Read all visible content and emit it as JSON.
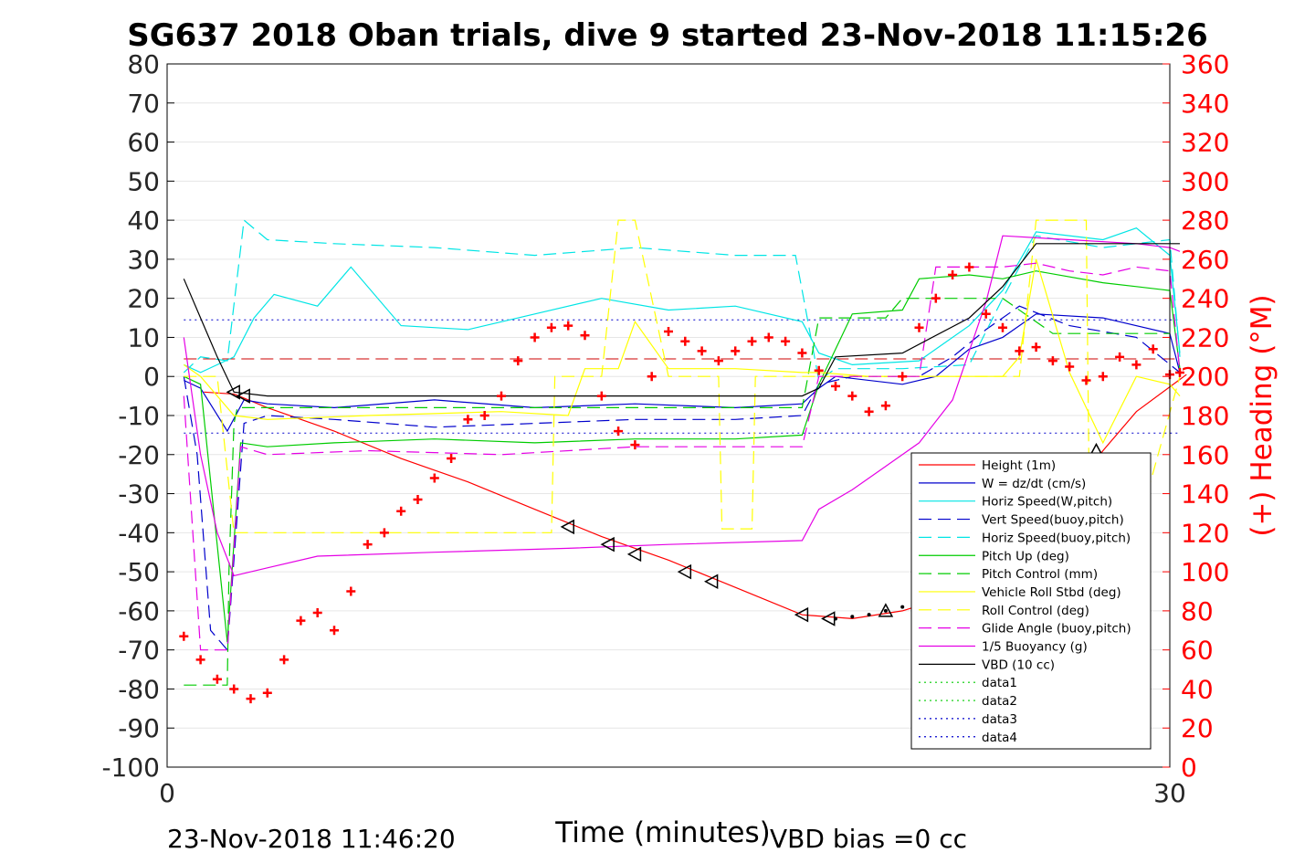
{
  "chart_data": {
    "type": "line",
    "title": "SG637 2018 Oban trials, dive 9 started 23-Nov-2018 11:15:26",
    "xlabel": "Time (minutes)",
    "ylabel_right": "(+) Heading (°M)",
    "xlim": [
      0,
      30
    ],
    "ylim_left": [
      -100,
      80
    ],
    "ylim_right": [
      0,
      360
    ],
    "x_ticks": [
      "0",
      "30"
    ],
    "y_ticks_left": [
      "80",
      "70",
      "60",
      "50",
      "40",
      "30",
      "20",
      "10",
      "0",
      "-10",
      "-20",
      "-30",
      "-40",
      "-50",
      "-60",
      "-70",
      "-80",
      "-90",
      "-100"
    ],
    "y_ticks_right": [
      "360",
      "340",
      "320",
      "300",
      "280",
      "260",
      "240",
      "220",
      "200",
      "180",
      "160",
      "140",
      "120",
      "100",
      "80",
      "60",
      "40",
      "20",
      "0"
    ],
    "footer_left": "23-Nov-2018 11:46:20",
    "footer_right": "VBD bias =0 cc",
    "legend_placement": "lower-right",
    "series": [
      {
        "name": "Height (1m)",
        "color": "#ff0000",
        "style": "solid",
        "x": [
          1.1,
          2.0,
          3.0,
          5.0,
          7.0,
          9.0,
          11.0,
          13.0,
          15.0,
          17.0,
          19.0,
          20.5,
          22.0,
          23.5,
          24.5,
          25.5,
          26.5,
          27.3,
          28.0,
          29.0,
          30.5
        ],
        "y": [
          -4,
          -4.5,
          -8,
          -14,
          -21,
          -27,
          -34,
          -41,
          -47,
          -54,
          -61,
          -62,
          -60,
          -56,
          -51,
          -44,
          -36,
          -27,
          -19,
          -9,
          0.5
        ]
      },
      {
        "name": "W = dz/dt (cm/s)",
        "color": "#0000cc",
        "style": "solid",
        "x": [
          0.5,
          1.0,
          1.8,
          2.3,
          3.0,
          5.0,
          8.0,
          11.0,
          14.0,
          17.0,
          19.0,
          19.5,
          20.0,
          22.0,
          23.0,
          24.0,
          25.0,
          26.0,
          28.0,
          30.0,
          30.3
        ],
        "y": [
          -1,
          -3,
          -14,
          -6,
          -7,
          -8,
          -6,
          -8,
          -7,
          -8,
          -7,
          -3,
          0,
          -2,
          0,
          7,
          10,
          16,
          15,
          11,
          1
        ]
      },
      {
        "name": "Horiz Speed(W,pitch)",
        "color": "#00e5e5",
        "style": "solid",
        "x": [
          0.5,
          1.0,
          2.0,
          2.6,
          3.2,
          4.5,
          5.5,
          7.0,
          9.0,
          11.0,
          13.0,
          15.0,
          17.0,
          19.0,
          19.5,
          20.5,
          22.5,
          24.0,
          25.0,
          26.0,
          28.0,
          29.0,
          30.0,
          30.3
        ],
        "y": [
          3,
          1,
          5,
          15,
          21,
          18,
          28,
          13,
          12,
          16,
          20,
          17,
          18,
          14,
          6,
          3,
          4,
          13,
          22,
          37,
          35,
          38,
          31,
          6
        ]
      },
      {
        "name": "Vert Speed(buoy,pitch)",
        "color": "#0000cc",
        "style": "dashed",
        "x": [
          0.5,
          0.9,
          1.3,
          1.8,
          2.3,
          3.0,
          5.0,
          8.0,
          11.0,
          14.0,
          17.0,
          19.0,
          19.5,
          20.5,
          22.5,
          23.5,
          24.5,
          25.5,
          27.0,
          29.0,
          30.3
        ],
        "y": [
          0,
          -20,
          -65,
          -70,
          -12,
          -10,
          -11,
          -13,
          -12,
          -11,
          -11,
          -10,
          -2,
          0,
          0,
          5,
          12,
          18,
          13,
          10,
          1
        ]
      },
      {
        "name": "Horiz Speed(buoy,pitch)",
        "color": "#00e5e5",
        "style": "dashed",
        "x": [
          0.5,
          1.0,
          1.8,
          2.3,
          3.0,
          5.0,
          8.0,
          11.0,
          14.0,
          17.0,
          18.8,
          19.0,
          19.5,
          20.0,
          22.0,
          24.0,
          25.0,
          26.0,
          28.0,
          30.0,
          30.3
        ],
        "y": [
          1,
          5,
          4,
          40,
          35,
          34,
          33,
          31,
          33,
          31,
          31,
          22,
          -1,
          2,
          2,
          3,
          20,
          36,
          33,
          35,
          5
        ]
      },
      {
        "name": "Pitch Up (deg)",
        "color": "#00cc00",
        "style": "solid",
        "x": [
          0.5,
          1.0,
          1.8,
          2.2,
          3.0,
          5.0,
          8.0,
          11.0,
          14.0,
          17.0,
          19.0,
          19.5,
          20.5,
          22.0,
          22.5,
          24.0,
          25.0,
          26.0,
          28.0,
          29.0,
          30.0,
          30.3
        ],
        "y": [
          0,
          -2,
          -68,
          -17,
          -18,
          -17,
          -16,
          -17,
          -16,
          -16,
          -15,
          -2,
          16,
          17,
          25,
          26,
          25,
          27,
          24,
          23,
          22,
          2
        ]
      },
      {
        "name": "Pitch Control (mm)",
        "color": "#00cc00",
        "style": "dashed",
        "x": [
          0.5,
          1.8,
          1.85,
          2.0,
          2.1,
          5.0,
          10.0,
          15.0,
          19.0,
          19.5,
          21.5,
          22.0,
          25.0,
          26.5,
          30.0
        ],
        "y": [
          -79,
          -79,
          -50,
          -12,
          -8,
          -8,
          -8,
          -8,
          -8,
          15,
          15,
          20,
          20,
          11,
          11
        ]
      },
      {
        "name": "Vehicle Roll Stbd (deg)",
        "color": "#ffff00",
        "style": "solid",
        "x": [
          0.5,
          1.0,
          2.0,
          3.0,
          6.0,
          10.0,
          12.0,
          12.5,
          13.5,
          14.0,
          15.0,
          17.0,
          19.0,
          19.5,
          21.0,
          23.0,
          25.0,
          25.5,
          26.0,
          27.0,
          28.0,
          29.0,
          30.0,
          30.3
        ],
        "y": [
          3,
          0,
          -10,
          -11,
          -10,
          -9,
          -10,
          2,
          2,
          14,
          2,
          2,
          1,
          1,
          0,
          0,
          0,
          5,
          30,
          1,
          -17,
          0,
          -2,
          -5
        ]
      },
      {
        "name": "Roll Control (deg)",
        "color": "#ffff00",
        "style": "dashed",
        "x": [
          0.5,
          1.5,
          2.0,
          2.2,
          5.0,
          9.0,
          11.5,
          11.6,
          13.0,
          13.5,
          14.0,
          15.0,
          15.1,
          16.5,
          16.6,
          17.5,
          17.6,
          19.0,
          21.5,
          25.5,
          26.0,
          27.5,
          27.6,
          29.0,
          30.3
        ],
        "y": [
          0,
          0,
          -40,
          -40,
          -40,
          -40,
          -40,
          0,
          0,
          40,
          40,
          0,
          0,
          0,
          -39,
          -39,
          0,
          0,
          0,
          0,
          40,
          40,
          -40,
          -40,
          0
        ]
      },
      {
        "name": "Glide Angle (buoy,pitch)",
        "color": "#e500e5",
        "style": "dashed",
        "x": [
          0.5,
          1.0,
          1.8,
          2.2,
          3.0,
          6.0,
          10.0,
          14.0,
          19.0,
          19.5,
          21.0,
          22.5,
          23.0,
          25.0,
          26.0,
          27.0,
          28.0,
          29.0,
          30.0,
          30.3
        ],
        "y": [
          -5,
          -70,
          -70,
          -18,
          -20,
          -19,
          -20,
          -18,
          -18,
          0,
          0,
          0,
          28,
          28,
          29,
          27,
          26,
          28,
          27,
          1
        ]
      },
      {
        "name": "1/5 Buoyancy (g)",
        "color": "#e500e5",
        "style": "solid",
        "x": [
          0.5,
          1.0,
          1.5,
          2.0,
          3.0,
          4.5,
          8.0,
          12.0,
          15.0,
          19.0,
          19.5,
          20.5,
          21.5,
          22.5,
          23.5,
          24.5,
          25.0,
          27.0,
          29.0,
          30.0,
          30.3
        ],
        "y": [
          10,
          -20,
          -40,
          -51,
          -49,
          -46,
          -45,
          -44,
          -43,
          -42,
          -34,
          -29,
          -23,
          -17,
          -6,
          19,
          36,
          35,
          34,
          33,
          32
        ]
      },
      {
        "name": "VBD (10 cc)",
        "color": "#000000",
        "style": "solid",
        "x": [
          0.5,
          1.0,
          1.5,
          2.0,
          3.0,
          8.0,
          14.0,
          19.0,
          19.5,
          20.0,
          22.0,
          24.0,
          25.0,
          26.0,
          28.0,
          30.3
        ],
        "y": [
          25,
          15,
          5,
          -4,
          -5,
          -5,
          -5,
          -5,
          -3,
          5,
          6,
          15,
          23,
          34,
          34,
          34
        ]
      },
      {
        "name": "data1",
        "color": "#00cc00",
        "style": "dotted",
        "x": [],
        "y": []
      },
      {
        "name": "data2",
        "color": "#00cc00",
        "style": "dotted",
        "x": [],
        "y": []
      },
      {
        "name": "data3",
        "color": "#0000cc",
        "style": "dotted",
        "x": [],
        "y": []
      },
      {
        "name": "data4",
        "color": "#0000cc",
        "style": "dotted",
        "x": [],
        "y": []
      }
    ],
    "reference_lines": [
      {
        "axis": "left",
        "y": 14.5,
        "color": "#0000cc",
        "style": "dotted",
        "x_range": [
          0.5,
          30.3
        ]
      },
      {
        "axis": "left",
        "y": -14.5,
        "color": "#0000cc",
        "style": "dotted",
        "x_range": [
          0.5,
          30.3
        ]
      },
      {
        "axis": "left",
        "y": 4.5,
        "color": "#cc0000",
        "style": "dashed",
        "x_range": [
          0.5,
          30.3
        ]
      }
    ],
    "heading_markers": {
      "axis": "right",
      "marker": "+",
      "color": "#ff0000",
      "x": [
        0.5,
        1.0,
        1.5,
        2.0,
        2.5,
        3.0,
        3.5,
        4.0,
        4.5,
        5.0,
        5.5,
        6.0,
        6.5,
        7.0,
        7.5,
        8.0,
        8.5,
        9.0,
        9.5,
        10.0,
        10.5,
        11.0,
        11.5,
        12.0,
        12.5,
        13.0,
        13.5,
        14.0,
        14.5,
        15.0,
        15.5,
        16.0,
        16.5,
        17.0,
        17.5,
        18.0,
        18.5,
        19.0,
        19.5,
        20.0,
        20.5,
        21.0,
        21.5,
        22.0,
        22.5,
        23.0,
        23.5,
        24.0,
        24.5,
        25.0,
        25.5,
        26.0,
        26.5,
        27.0,
        27.5,
        28.0,
        28.5,
        29.0,
        29.5,
        30.0,
        30.3
      ],
      "y": [
        67,
        55,
        45,
        40,
        35,
        38,
        55,
        75,
        79,
        70,
        90,
        114,
        120,
        131,
        137,
        148,
        158,
        178,
        180,
        190,
        208,
        220,
        225,
        226,
        221,
        190,
        172,
        165,
        200,
        223,
        218,
        213,
        208,
        213,
        218,
        220,
        218,
        212,
        203,
        195,
        190,
        182,
        185,
        200,
        225,
        240,
        252,
        256,
        232,
        225,
        213,
        215,
        208,
        205,
        198,
        200,
        210,
        206,
        214,
        201,
        202
      ]
    },
    "direction_markers": {
      "color": "#000000",
      "down": {
        "x": [
          2.0,
          2.3,
          12.0,
          13.2,
          14.0,
          15.5,
          16.3,
          19.0,
          19.8
        ],
        "y": [
          -4,
          -5,
          -38.5,
          -43,
          -45.5,
          -50,
          -52.5,
          -61,
          -62
        ]
      },
      "up": {
        "x": [
          21.5,
          25.0,
          25.3,
          25.8,
          26.0,
          27.0,
          27.8
        ],
        "y": [
          -60,
          -45,
          -43,
          -39,
          -38,
          -27,
          -19
        ]
      },
      "dots_x": [
        20.0,
        20.5,
        21.0,
        21.5,
        22.0,
        22.5,
        23.0,
        23.5,
        24.0,
        24.5,
        25.0
      ],
      "dots_y": [
        -62,
        -61.5,
        -61,
        -60,
        -59,
        -57.5,
        -56,
        -54,
        -51.5,
        -48.5,
        -45
      ]
    }
  }
}
